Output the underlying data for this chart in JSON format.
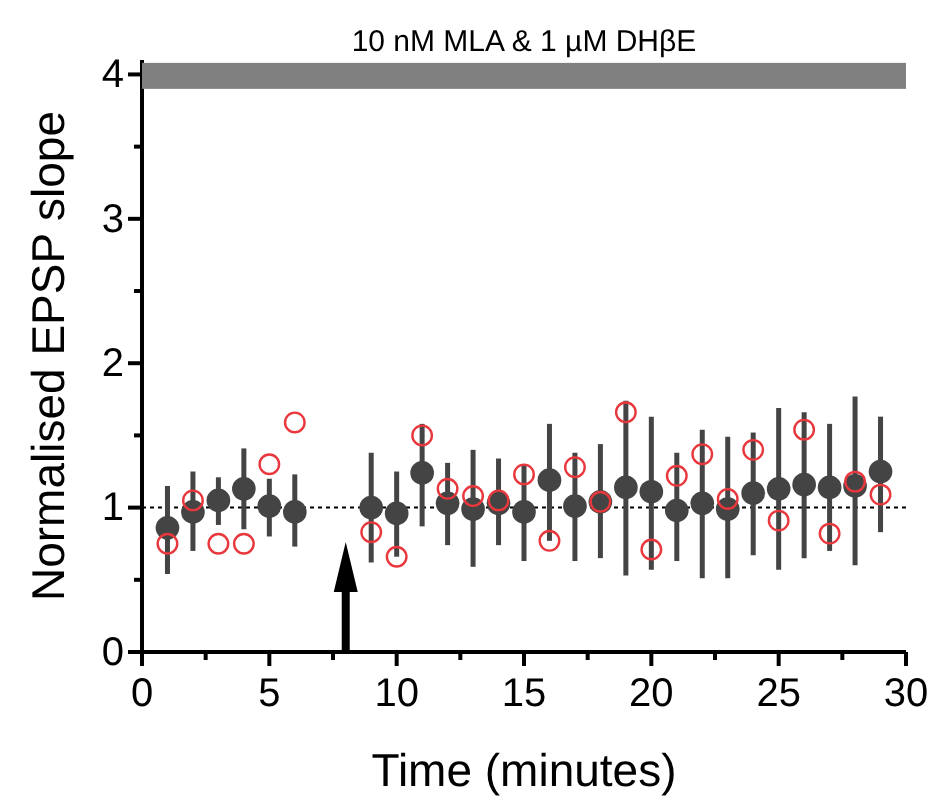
{
  "chart_data": {
    "type": "scatter",
    "xlabel": "Time (minutes)",
    "ylabel": "Normalised EPSP slope",
    "xlim": [
      0,
      30
    ],
    "ylim": [
      0,
      4.1
    ],
    "xticks": [
      0,
      {
        "value": 2.5,
        "label": null
      },
      5,
      {
        "value": 7.5,
        "label": null
      },
      10,
      {
        "value": 12.5,
        "label": null
      },
      15,
      {
        "value": 17.5,
        "label": null
      },
      20,
      {
        "value": 22.5,
        "label": null
      },
      25,
      {
        "value": 27.5,
        "label": null
      },
      30
    ],
    "yticks": [
      0,
      {
        "value": 0.5,
        "label": null
      },
      1,
      {
        "value": 1.5,
        "label": null
      },
      2,
      {
        "value": 2.5,
        "label": null
      },
      3,
      {
        "value": 3.5,
        "label": null
      },
      4
    ],
    "marker": "circle",
    "series": [
      {
        "color": "#444444",
        "x": [
          1,
          2,
          3,
          4,
          5,
          6,
          9,
          10,
          11,
          12,
          13,
          14,
          15,
          16,
          17,
          18,
          19,
          20,
          21,
          22,
          23,
          24,
          25,
          26,
          27,
          28,
          29
        ],
        "values": [
          0.86,
          0.97,
          1.05,
          1.13,
          1.01,
          0.97,
          1.0,
          0.96,
          1.24,
          1.03,
          0.99,
          1.03,
          0.97,
          1.19,
          1.01,
          1.04,
          1.14,
          1.11,
          0.98,
          1.03,
          0.99,
          1.1,
          1.13,
          1.16,
          1.14,
          1.15,
          1.25
        ],
        "errors": [
          [
            0.54,
            1.15
          ],
          [
            0.7,
            1.25
          ],
          [
            0.88,
            1.21
          ],
          [
            0.85,
            1.41
          ],
          [
            0.8,
            1.2
          ],
          [
            0.73,
            1.23
          ],
          [
            0.62,
            1.38
          ],
          [
            0.66,
            1.25
          ],
          [
            0.87,
            1.58
          ],
          [
            0.74,
            1.31
          ],
          [
            0.59,
            1.4
          ],
          [
            0.74,
            1.34
          ],
          [
            0.63,
            1.3
          ],
          [
            0.77,
            1.58
          ],
          [
            0.63,
            1.38
          ],
          [
            0.65,
            1.44
          ],
          [
            0.53,
            1.74
          ],
          [
            0.57,
            1.63
          ],
          [
            0.63,
            1.38
          ],
          [
            0.51,
            1.54
          ],
          [
            0.51,
            1.49
          ],
          [
            0.67,
            1.52
          ],
          [
            0.57,
            1.69
          ],
          [
            0.65,
            1.66
          ],
          [
            0.7,
            1.58
          ],
          [
            0.6,
            1.77
          ],
          [
            0.83,
            1.63
          ]
        ]
      },
      {
        "color": "#e8383d",
        "x": [
          1,
          2,
          3,
          4,
          5,
          6,
          9,
          10,
          11,
          12,
          13,
          14,
          15,
          16,
          17,
          18,
          19,
          20,
          21,
          22,
          23,
          24,
          25,
          26,
          27,
          28,
          29
        ],
        "values": [
          0.75,
          1.05,
          0.75,
          0.75,
          1.3,
          1.59,
          0.83,
          0.66,
          1.5,
          1.13,
          1.08,
          1.05,
          1.23,
          0.77,
          1.28,
          1.04,
          1.66,
          0.71,
          1.22,
          1.37,
          1.06,
          1.4,
          0.91,
          1.54,
          0.82,
          1.18,
          1.09
        ]
      }
    ],
    "ref_lines": [
      {
        "axis": "y",
        "value": 1,
        "label": null,
        "color": "#000000",
        "line_style": "dotted"
      }
    ],
    "bands": [
      {
        "axis": "y",
        "from": 3.9,
        "to": 4.08,
        "label": "10 nM MLA & 1 µM DHβE",
        "color": "#808080"
      }
    ]
  }
}
